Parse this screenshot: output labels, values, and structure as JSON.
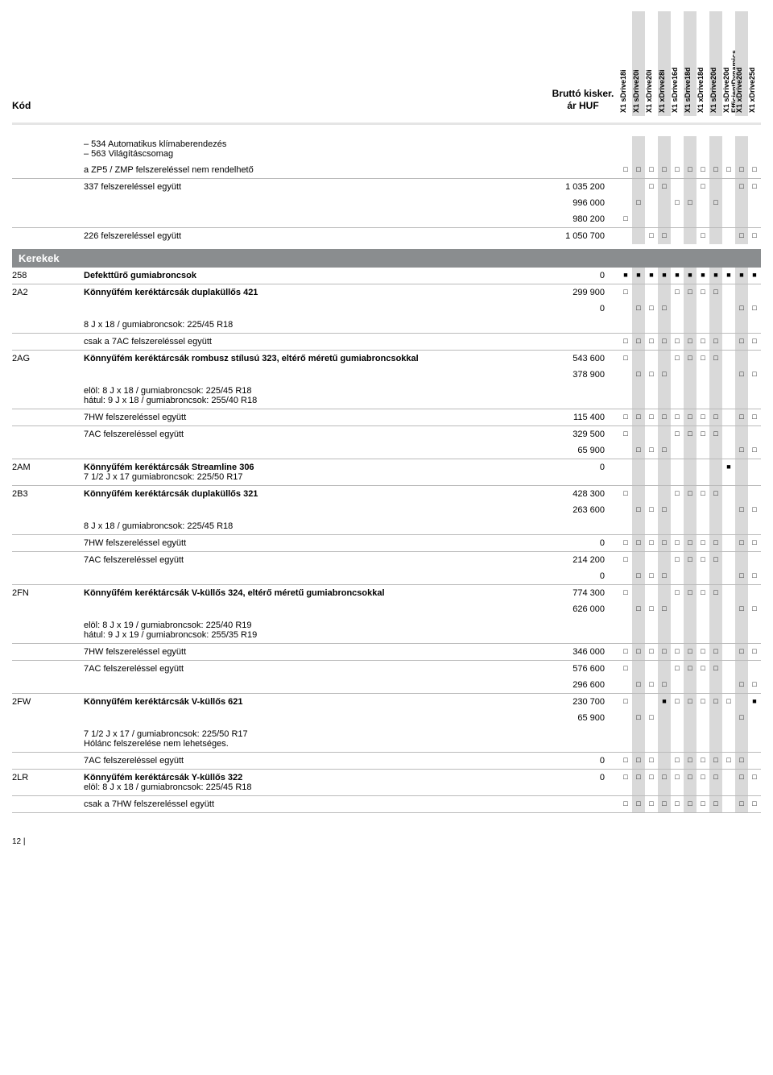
{
  "header": {
    "kod": "Kód",
    "price": "Bruttó kisker. ár HUF",
    "columns": [
      {
        "label": "X1 sDrive18i",
        "gray": false
      },
      {
        "label": "X1 sDrive20i",
        "gray": true
      },
      {
        "label": "X1 xDrive20i",
        "gray": false
      },
      {
        "label": "X1 xDrive28i",
        "gray": true
      },
      {
        "label": "X1 sDrive16d",
        "gray": false
      },
      {
        "label": "X1 sDrive18d",
        "gray": true
      },
      {
        "label": "X1 xDrive18d",
        "gray": false
      },
      {
        "label": "X1 sDrive20d",
        "gray": true
      },
      {
        "label": "X1 sDrive20d EfficientDynamics",
        "gray": false
      },
      {
        "label": "X1 xDrive20d",
        "gray": true
      },
      {
        "label": "X1 xDrive25d",
        "gray": false
      }
    ]
  },
  "marks": {
    "sq": "□",
    "fl": "■",
    "none": ""
  },
  "top_rows": [
    {
      "code": "",
      "desc": "– 534 Automatikus klímaberendezés\n– 563 Világításcsomag",
      "price": "",
      "m": [
        "",
        "",
        "",
        "",
        "",
        "",
        "",
        "",
        "",
        "",
        ""
      ]
    },
    {
      "code": "",
      "desc": "a ZP5 / ZMP felszereléssel nem rendelhető",
      "price": "",
      "m": [
        "sq",
        "sq",
        "sq",
        "sq",
        "sq",
        "sq",
        "sq",
        "sq",
        "sq",
        "sq",
        "sq"
      ],
      "border": true
    },
    {
      "code": "",
      "desc": "337 felszereléssel együtt",
      "price": "1 035 200",
      "m": [
        "",
        "",
        "sq",
        "sq",
        "",
        "",
        "sq",
        "",
        "",
        "sq",
        "sq"
      ],
      "border_top": true
    },
    {
      "code": "",
      "desc": "",
      "price": "996 000",
      "m": [
        "",
        "sq",
        "",
        "",
        "sq",
        "sq",
        "",
        "sq",
        "",
        "",
        ""
      ]
    },
    {
      "code": "",
      "desc": "",
      "price": "980 200",
      "m": [
        "sq",
        "",
        "",
        "",
        "",
        "",
        "",
        "",
        "",
        "",
        ""
      ],
      "border": true
    },
    {
      "code": "",
      "desc": "226 felszereléssel együtt",
      "price": "1 050 700",
      "m": [
        "",
        "",
        "sq",
        "sq",
        "",
        "",
        "sq",
        "",
        "",
        "sq",
        "sq"
      ],
      "border_top": true
    }
  ],
  "section": "Kerekek",
  "rows": [
    {
      "code": "258",
      "desc": "Defekttűrő gumiabroncsok",
      "bold": true,
      "price": "0",
      "m": [
        "fl",
        "fl",
        "fl",
        "fl",
        "fl",
        "fl",
        "fl",
        "fl",
        "fl",
        "fl",
        "fl"
      ],
      "border": true
    },
    {
      "code": "2A2",
      "desc": "Könnyűfém keréktárcsák duplaküllős 421",
      "bold": true,
      "price": "299 900",
      "m": [
        "sq",
        "",
        "",
        "",
        "sq",
        "sq",
        "sq",
        "sq",
        "",
        "",
        ""
      ]
    },
    {
      "code": "",
      "desc": "",
      "price": "0",
      "m": [
        "",
        "sq",
        "sq",
        "sq",
        "",
        "",
        "",
        "",
        "",
        "sq",
        "sq"
      ]
    },
    {
      "code": "",
      "desc": "8 J x 18 / gumiabroncsok: 225/45 R18",
      "price": "",
      "m": [
        "",
        "",
        "",
        "",
        "",
        "",
        "",
        "",
        "",
        "",
        ""
      ],
      "border": true
    },
    {
      "code": "",
      "desc": "csak a 7AC felszereléssel együtt",
      "price": "",
      "m": [
        "sq",
        "sq",
        "sq",
        "sq",
        "sq",
        "sq",
        "sq",
        "sq",
        "",
        "sq",
        "sq"
      ],
      "border": true
    },
    {
      "code": "2AG",
      "desc": "Könnyűfém keréktárcsák rombusz stílusú 323, eltérő méretű gumiabroncsokkal",
      "bold": true,
      "price": "543 600",
      "m": [
        "sq",
        "",
        "",
        "",
        "sq",
        "sq",
        "sq",
        "sq",
        "",
        "",
        ""
      ]
    },
    {
      "code": "",
      "desc": "",
      "price": "378 900",
      "m": [
        "",
        "sq",
        "sq",
        "sq",
        "",
        "",
        "",
        "",
        "",
        "sq",
        "sq"
      ]
    },
    {
      "code": "",
      "desc": "elöl: 8 J x 18 / gumiabroncsok: 225/45 R18\nhátul: 9 J x 18 / gumiabroncsok: 255/40 R18",
      "price": "",
      "m": [
        "",
        "",
        "",
        "",
        "",
        "",
        "",
        "",
        "",
        "",
        ""
      ],
      "border": true
    },
    {
      "code": "",
      "desc": "7HW felszereléssel együtt",
      "price": "115 400",
      "m": [
        "sq",
        "sq",
        "sq",
        "sq",
        "sq",
        "sq",
        "sq",
        "sq",
        "",
        "sq",
        "sq"
      ],
      "border": true
    },
    {
      "code": "",
      "desc": "7AC felszereléssel együtt",
      "price": "329 500",
      "m": [
        "sq",
        "",
        "",
        "",
        "sq",
        "sq",
        "sq",
        "sq",
        "",
        "",
        ""
      ]
    },
    {
      "code": "",
      "desc": "",
      "price": "65 900",
      "m": [
        "",
        "sq",
        "sq",
        "sq",
        "",
        "",
        "",
        "",
        "",
        "sq",
        "sq"
      ],
      "border": true
    },
    {
      "code": "2AM",
      "desc": "Könnyűfém keréktárcsák Streamline 306",
      "bold": true,
      "sub": "7 1/2 J x 17 gumiabroncsok: 225/50 R17",
      "price": "0",
      "m": [
        "",
        "",
        "",
        "",
        "",
        "",
        "",
        "",
        "fl",
        "",
        ""
      ],
      "border": true
    },
    {
      "code": "2B3",
      "desc": "Könnyűfém keréktárcsák duplaküllős 321",
      "bold": true,
      "price": "428 300",
      "m": [
        "sq",
        "",
        "",
        "",
        "sq",
        "sq",
        "sq",
        "sq",
        "",
        "",
        ""
      ]
    },
    {
      "code": "",
      "desc": "",
      "price": "263 600",
      "m": [
        "",
        "sq",
        "sq",
        "sq",
        "",
        "",
        "",
        "",
        "",
        "sq",
        "sq"
      ]
    },
    {
      "code": "",
      "desc": "8 J x 18 / gumiabroncsok: 225/45 R18",
      "price": "",
      "m": [
        "",
        "",
        "",
        "",
        "",
        "",
        "",
        "",
        "",
        "",
        ""
      ],
      "border": true
    },
    {
      "code": "",
      "desc": "7HW felszereléssel együtt",
      "price": "0",
      "m": [
        "sq",
        "sq",
        "sq",
        "sq",
        "sq",
        "sq",
        "sq",
        "sq",
        "",
        "sq",
        "sq"
      ],
      "border": true
    },
    {
      "code": "",
      "desc": "7AC felszereléssel együtt",
      "price": "214 200",
      "m": [
        "sq",
        "",
        "",
        "",
        "sq",
        "sq",
        "sq",
        "sq",
        "",
        "",
        ""
      ]
    },
    {
      "code": "",
      "desc": "",
      "price": "0",
      "m": [
        "",
        "sq",
        "sq",
        "sq",
        "",
        "",
        "",
        "",
        "",
        "sq",
        "sq"
      ],
      "border": true
    },
    {
      "code": "2FN",
      "desc": "Könnyűfém keréktárcsák V-küllős 324, eltérő méretű gumiabroncsokkal",
      "bold": true,
      "price": "774 300",
      "m": [
        "sq",
        "",
        "",
        "",
        "sq",
        "sq",
        "sq",
        "sq",
        "",
        "",
        ""
      ]
    },
    {
      "code": "",
      "desc": "",
      "price": "626 000",
      "m": [
        "",
        "sq",
        "sq",
        "sq",
        "",
        "",
        "",
        "",
        "",
        "sq",
        "sq"
      ]
    },
    {
      "code": "",
      "desc": "elöl: 8 J x 19 / gumiabroncsok: 225/40 R19\nhátul: 9 J x 19 / gumiabroncsok: 255/35 R19",
      "price": "",
      "m": [
        "",
        "",
        "",
        "",
        "",
        "",
        "",
        "",
        "",
        "",
        ""
      ],
      "border": true
    },
    {
      "code": "",
      "desc": "7HW felszereléssel együtt",
      "price": "346 000",
      "m": [
        "sq",
        "sq",
        "sq",
        "sq",
        "sq",
        "sq",
        "sq",
        "sq",
        "",
        "sq",
        "sq"
      ],
      "border": true
    },
    {
      "code": "",
      "desc": "7AC felszereléssel együtt",
      "price": "576 600",
      "m": [
        "sq",
        "",
        "",
        "",
        "sq",
        "sq",
        "sq",
        "sq",
        "",
        "",
        ""
      ]
    },
    {
      "code": "",
      "desc": "",
      "price": "296 600",
      "m": [
        "",
        "sq",
        "sq",
        "sq",
        "",
        "",
        "",
        "",
        "",
        "sq",
        "sq"
      ],
      "border": true
    },
    {
      "code": "2FW",
      "desc": "Könnyűfém keréktárcsák V-küllős 621",
      "bold": true,
      "price": "230 700",
      "m": [
        "sq",
        "",
        "",
        "fl",
        "sq",
        "sq",
        "sq",
        "sq",
        "sq",
        "",
        "fl"
      ]
    },
    {
      "code": "",
      "desc": "",
      "price": "65 900",
      "m": [
        "",
        "sq",
        "sq",
        "",
        "",
        "",
        "",
        "",
        "",
        "sq",
        ""
      ]
    },
    {
      "code": "",
      "desc": "7 1/2 J x 17 / gumiabroncsok: 225/50 R17\nHólánc felszerelése nem lehetséges.",
      "price": "",
      "m": [
        "",
        "",
        "",
        "",
        "",
        "",
        "",
        "",
        "",
        "",
        ""
      ],
      "border": true
    },
    {
      "code": "",
      "desc": "7AC felszereléssel együtt",
      "price": "0",
      "m": [
        "sq",
        "sq",
        "sq",
        "",
        "sq",
        "sq",
        "sq",
        "sq",
        "sq",
        "sq",
        ""
      ],
      "border": true
    },
    {
      "code": "2LR",
      "desc": "Könnyűfém keréktárcsák Y-küllős 322",
      "bold": true,
      "sub": "elöl: 8 J x 18 / gumiabroncsok: 225/45 R18",
      "price": "0",
      "m": [
        "sq",
        "sq",
        "sq",
        "sq",
        "sq",
        "sq",
        "sq",
        "sq",
        "",
        "sq",
        "sq"
      ],
      "border": true
    },
    {
      "code": "",
      "desc": "csak a 7HW felszereléssel együtt",
      "price": "",
      "m": [
        "sq",
        "sq",
        "sq",
        "sq",
        "sq",
        "sq",
        "sq",
        "sq",
        "",
        "sq",
        "sq"
      ],
      "border": true
    }
  ],
  "pagefoot": "12 |"
}
